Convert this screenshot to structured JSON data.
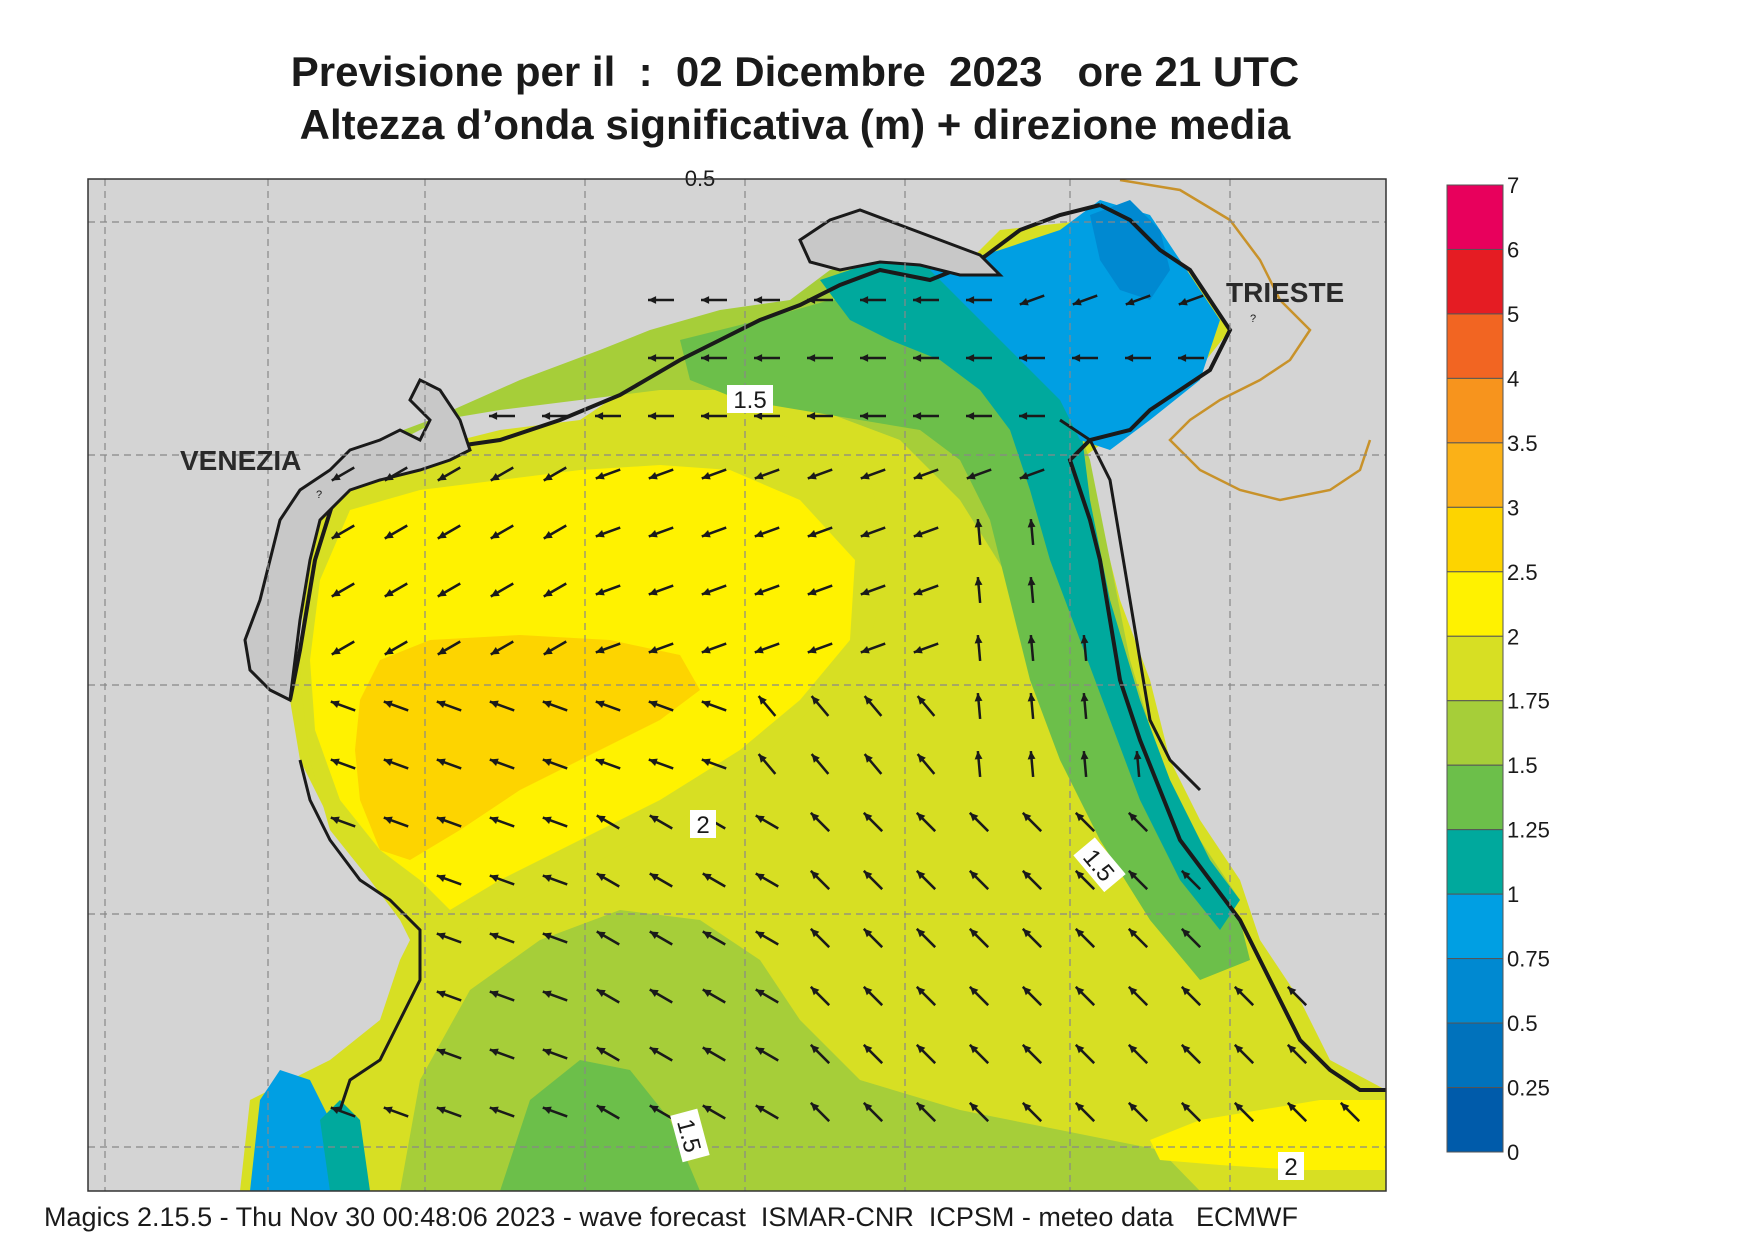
{
  "title": {
    "line1": "Previsione per il  :  02 Dicembre  2023   ore 21 UTC",
    "line2": "Altezza d’onda significativa (m) + direzione media"
  },
  "map": {
    "cities": {
      "venezia": "VENEZIA",
      "trieste": "TRIESTE"
    },
    "contour_labels": [
      "1.5",
      "2",
      "1.5",
      "1.5",
      "2"
    ],
    "top_edge_label": "0.5"
  },
  "legend": {
    "ticks": [
      "7",
      "6",
      "5",
      "4",
      "3.5",
      "3",
      "2.5",
      "2",
      "1.75",
      "1.5",
      "1.25",
      "1",
      "0.75",
      "0.5",
      "0.25",
      "0"
    ],
    "colors": [
      "#e8005c",
      "#e51c23",
      "#f26522",
      "#f7941d",
      "#fbb117",
      "#fdd400",
      "#fff200",
      "#d7df23",
      "#a6ce39",
      "#6cbf4a",
      "#00a99d",
      "#009fe3",
      "#0089d1",
      "#0072bc",
      "#005baa"
    ]
  },
  "footer": "Magics 2.15.5 - Thu Nov 30 00:48:06 2023 - wave forecast  ISMAR-CNR  ICPSM - meteo data   ECMWF"
}
